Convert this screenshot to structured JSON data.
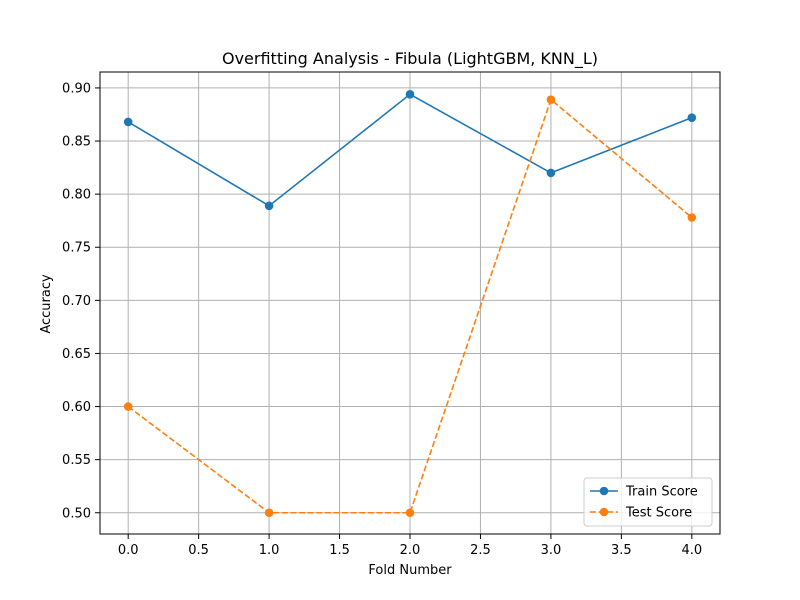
{
  "chart_data": {
    "type": "line",
    "title": "Overfitting Analysis - Fibula (LightGBM, KNN_L)",
    "xlabel": "Fold Number",
    "ylabel": "Accuracy",
    "x": [
      0,
      1,
      2,
      3,
      4
    ],
    "xlim": [
      -0.2,
      4.2
    ],
    "ylim": [
      0.48,
      0.915
    ],
    "xticks": [
      0.0,
      0.5,
      1.0,
      1.5,
      2.0,
      2.5,
      3.0,
      3.5,
      4.0
    ],
    "xtick_labels": [
      "0.0",
      "0.5",
      "1.0",
      "1.5",
      "2.0",
      "2.5",
      "3.0",
      "3.5",
      "4.0"
    ],
    "yticks": [
      0.5,
      0.55,
      0.6,
      0.65,
      0.7,
      0.75,
      0.8,
      0.85,
      0.9
    ],
    "ytick_labels": [
      "0.50",
      "0.55",
      "0.60",
      "0.65",
      "0.70",
      "0.75",
      "0.80",
      "0.85",
      "0.90"
    ],
    "grid": true,
    "legend_position": "bottom-right",
    "series": [
      {
        "name": "Train Score",
        "values": [
          0.868,
          0.789,
          0.894,
          0.82,
          0.872
        ],
        "color": "#1f77b4",
        "style": "solid",
        "marker": "circle"
      },
      {
        "name": "Test Score",
        "values": [
          0.6,
          0.5,
          0.5,
          0.889,
          0.778
        ],
        "color": "#ff7f0e",
        "style": "dashed",
        "marker": "circle"
      }
    ]
  }
}
